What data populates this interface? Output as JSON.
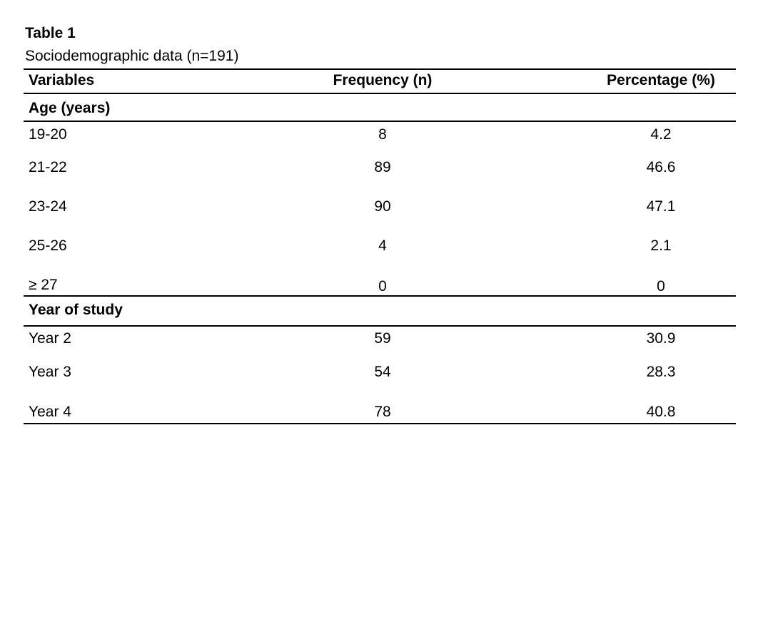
{
  "table": {
    "number": "Table 1",
    "caption": "Sociodemographic data (n=191)",
    "headers": {
      "variables": "Variables",
      "frequency": "Frequency (n)",
      "percentage": "Percentage (%)"
    },
    "sections": [
      {
        "title": "Age (years)",
        "rows": [
          {
            "variable": "19-20",
            "frequency": "8",
            "percentage": "4.2"
          },
          {
            "variable": "21-22",
            "frequency": "89",
            "percentage": "46.6"
          },
          {
            "variable": "23-24",
            "frequency": "90",
            "percentage": "47.1"
          },
          {
            "variable": "25-26",
            "frequency": "4",
            "percentage": "2.1"
          },
          {
            "variable": "≥ 27",
            "frequency": "0",
            "percentage": "0"
          }
        ]
      },
      {
        "title": "Year of study",
        "rows": [
          {
            "variable": "Year 2",
            "frequency": "59",
            "percentage": "30.9"
          },
          {
            "variable": "Year 3",
            "frequency": "54",
            "percentage": "28.3"
          },
          {
            "variable": "Year 4",
            "frequency": "78",
            "percentage": "40.8"
          }
        ]
      }
    ]
  }
}
